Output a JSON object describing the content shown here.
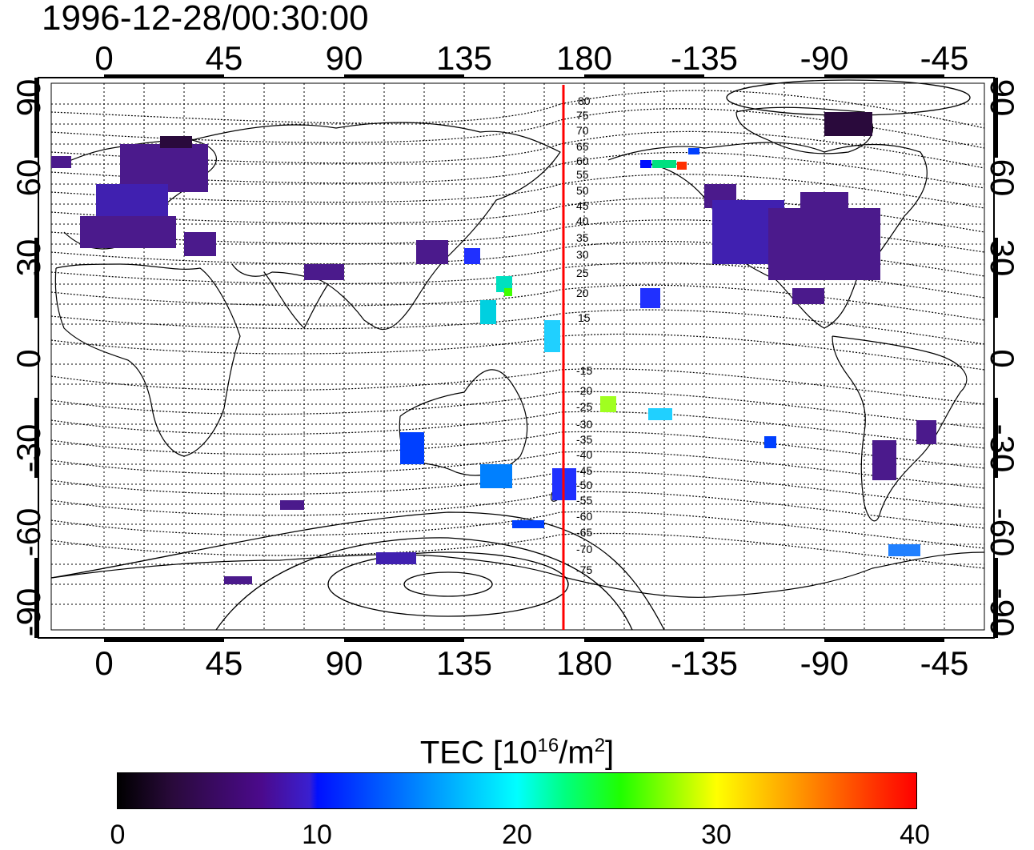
{
  "title": "1996-12-28/00:30:00",
  "top_ticks": [
    "0",
    "45",
    "90",
    "135",
    "180",
    "-135",
    "-90",
    "-45"
  ],
  "bottom_ticks": [
    "0",
    "45",
    "90",
    "135",
    "180",
    "-135",
    "-90",
    "-45"
  ],
  "left_ticks": [
    "90",
    "60",
    "30",
    "0",
    "-30",
    "-60",
    "-90"
  ],
  "right_ticks": [
    "90",
    "60",
    "30",
    "0",
    "-30",
    "-60",
    "-90"
  ],
  "contour_labels_north": [
    "80",
    "75",
    "70",
    "65",
    "60",
    "55",
    "50",
    "45",
    "40",
    "35",
    "30",
    "25",
    "20",
    "15"
  ],
  "contour_labels_south": [
    "-15",
    "-20",
    "-25",
    "-30",
    "-35",
    "-40",
    "-45",
    "-50",
    "-55",
    "-60",
    "-65",
    "-70",
    "-75"
  ],
  "colorbar": {
    "title_text": "TEC  [10",
    "title_sup1": "16",
    "title_mid": "/m",
    "title_sup2": "2",
    "title_end": "]",
    "ticks": [
      "0",
      "10",
      "20",
      "30",
      "40"
    ],
    "range": [
      0,
      40
    ]
  },
  "colors": {
    "meridian_line": "#ff0000",
    "low": "#4b0a8c",
    "mid": "#0010ff",
    "high": "#ff0000"
  }
}
